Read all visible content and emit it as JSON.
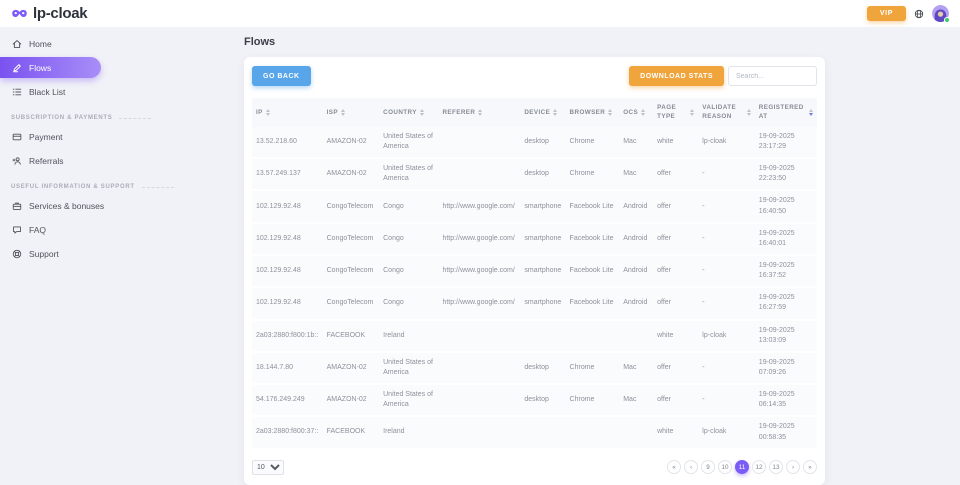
{
  "topbar": {
    "brand": "lp-cloak",
    "vip_label": "VIP"
  },
  "sidebar": {
    "sections": [
      {
        "label": "",
        "items": [
          {
            "label": "Home",
            "icon": "home-icon",
            "active": false
          },
          {
            "label": "Flows",
            "icon": "flows-icon",
            "active": true
          },
          {
            "label": "Black List",
            "icon": "blacklist-icon",
            "active": false
          }
        ]
      },
      {
        "label": "SUBSCRIPTION & PAYMENTS",
        "items": [
          {
            "label": "Payment",
            "icon": "payment-icon",
            "active": false
          },
          {
            "label": "Referrals",
            "icon": "referrals-icon",
            "active": false
          }
        ]
      },
      {
        "label": "USEFUL INFORMATION & SUPPORT",
        "items": [
          {
            "label": "Services & bonuses",
            "icon": "services-icon",
            "active": false
          },
          {
            "label": "FAQ",
            "icon": "faq-icon",
            "active": false
          },
          {
            "label": "Support",
            "icon": "support-icon",
            "active": false
          }
        ]
      }
    ]
  },
  "main": {
    "title": "Flows",
    "toolbar": {
      "go_back_label": "GO BACK",
      "download_stats_label": "DOWNLOAD STATS",
      "search_placeholder": "Search..."
    },
    "table": {
      "columns": [
        {
          "key": "ip",
          "label": "IP",
          "sorted": ""
        },
        {
          "key": "isp",
          "label": "ISP",
          "sorted": ""
        },
        {
          "key": "country",
          "label": "COUNTRY",
          "sorted": ""
        },
        {
          "key": "referer",
          "label": "REFERER",
          "sorted": ""
        },
        {
          "key": "device",
          "label": "DEVICE",
          "sorted": ""
        },
        {
          "key": "browser",
          "label": "BROWSER",
          "sorted": ""
        },
        {
          "key": "ocs",
          "label": "OCS",
          "sorted": ""
        },
        {
          "key": "page_type",
          "label": "PAGE TYPE",
          "sorted": ""
        },
        {
          "key": "validate_reason",
          "label": "VALIDATE REASON",
          "sorted": ""
        },
        {
          "key": "registered_at",
          "label": "REGISTERED AT",
          "sorted": "desc"
        }
      ],
      "rows": [
        {
          "ip": "13.52.218.60",
          "isp": "AMAZON-02",
          "country": "United States of America",
          "referer": "",
          "device": "desktop",
          "browser": "Chrome",
          "ocs": "Mac",
          "page_type": "white",
          "validate_reason": "lp-cloak",
          "registered_date": "19-09-2025",
          "registered_time": "23:17:29"
        },
        {
          "ip": "13.57.249.137",
          "isp": "AMAZON-02",
          "country": "United States of America",
          "referer": "",
          "device": "desktop",
          "browser": "Chrome",
          "ocs": "Mac",
          "page_type": "offer",
          "validate_reason": "-",
          "registered_date": "19-09-2025",
          "registered_time": "22:23:50"
        },
        {
          "ip": "102.129.92.48",
          "isp": "CongoTelecom",
          "country": "Congo",
          "referer": "http://www.google.com/",
          "device": "smartphone",
          "browser": "Facebook Lite",
          "ocs": "Android",
          "page_type": "offer",
          "validate_reason": "-",
          "registered_date": "19-09-2025",
          "registered_time": "16:40:50"
        },
        {
          "ip": "102.129.92.48",
          "isp": "CongoTelecom",
          "country": "Congo",
          "referer": "http://www.google.com/",
          "device": "smartphone",
          "browser": "Facebook Lite",
          "ocs": "Android",
          "page_type": "offer",
          "validate_reason": "-",
          "registered_date": "19-09-2025",
          "registered_time": "16:40:01"
        },
        {
          "ip": "102.129.92.48",
          "isp": "CongoTelecom",
          "country": "Congo",
          "referer": "http://www.google.com/",
          "device": "smartphone",
          "browser": "Facebook Lite",
          "ocs": "Android",
          "page_type": "offer",
          "validate_reason": "-",
          "registered_date": "19-09-2025",
          "registered_time": "16:37:52"
        },
        {
          "ip": "102.129.92.48",
          "isp": "CongoTelecom",
          "country": "Congo",
          "referer": "http://www.google.com/",
          "device": "smartphone",
          "browser": "Facebook Lite",
          "ocs": "Android",
          "page_type": "offer",
          "validate_reason": "-",
          "registered_date": "19-09-2025",
          "registered_time": "16:27:59"
        },
        {
          "ip": "2a03:2880:f800:1b::",
          "isp": "FACEBOOK",
          "country": "Ireland",
          "referer": "",
          "device": "",
          "browser": "",
          "ocs": "",
          "page_type": "white",
          "validate_reason": "lp-cloak",
          "registered_date": "19-09-2025",
          "registered_time": "13:03:09"
        },
        {
          "ip": "18.144.7.80",
          "isp": "AMAZON-02",
          "country": "United States of America",
          "referer": "",
          "device": "desktop",
          "browser": "Chrome",
          "ocs": "Mac",
          "page_type": "offer",
          "validate_reason": "-",
          "registered_date": "19-09-2025",
          "registered_time": "07:09:26"
        },
        {
          "ip": "54.176.249.249",
          "isp": "AMAZON-02",
          "country": "United States of America",
          "referer": "",
          "device": "desktop",
          "browser": "Chrome",
          "ocs": "Mac",
          "page_type": "offer",
          "validate_reason": "-",
          "registered_date": "19-09-2025",
          "registered_time": "06:14:35"
        },
        {
          "ip": "2a03:2880:f800:37::",
          "isp": "FACEBOOK",
          "country": "Ireland",
          "referer": "",
          "device": "",
          "browser": "",
          "ocs": "",
          "page_type": "white",
          "validate_reason": "lp-cloak",
          "registered_date": "19-09-2025",
          "registered_time": "00:58:35"
        }
      ]
    },
    "pagination": {
      "rows_per_page": "10",
      "pages": [
        {
          "label": "«",
          "name": "first-page",
          "active": false
        },
        {
          "label": "‹",
          "name": "prev-page",
          "active": false
        },
        {
          "label": "9",
          "name": "page-9",
          "active": false
        },
        {
          "label": "10",
          "name": "page-10",
          "active": false
        },
        {
          "label": "11",
          "name": "page-11",
          "active": true
        },
        {
          "label": "12",
          "name": "page-12",
          "active": false
        },
        {
          "label": "13",
          "name": "page-13",
          "active": false
        },
        {
          "label": "›",
          "name": "next-page",
          "active": false
        },
        {
          "label": "»",
          "name": "last-page",
          "active": false
        }
      ]
    }
  },
  "colors": {
    "accent_purple": "#7c5cf6",
    "accent_orange": "#f0a43c",
    "accent_blue": "#58a5ea",
    "online_green": "#3ec96a",
    "background": "#f1f2f7"
  }
}
